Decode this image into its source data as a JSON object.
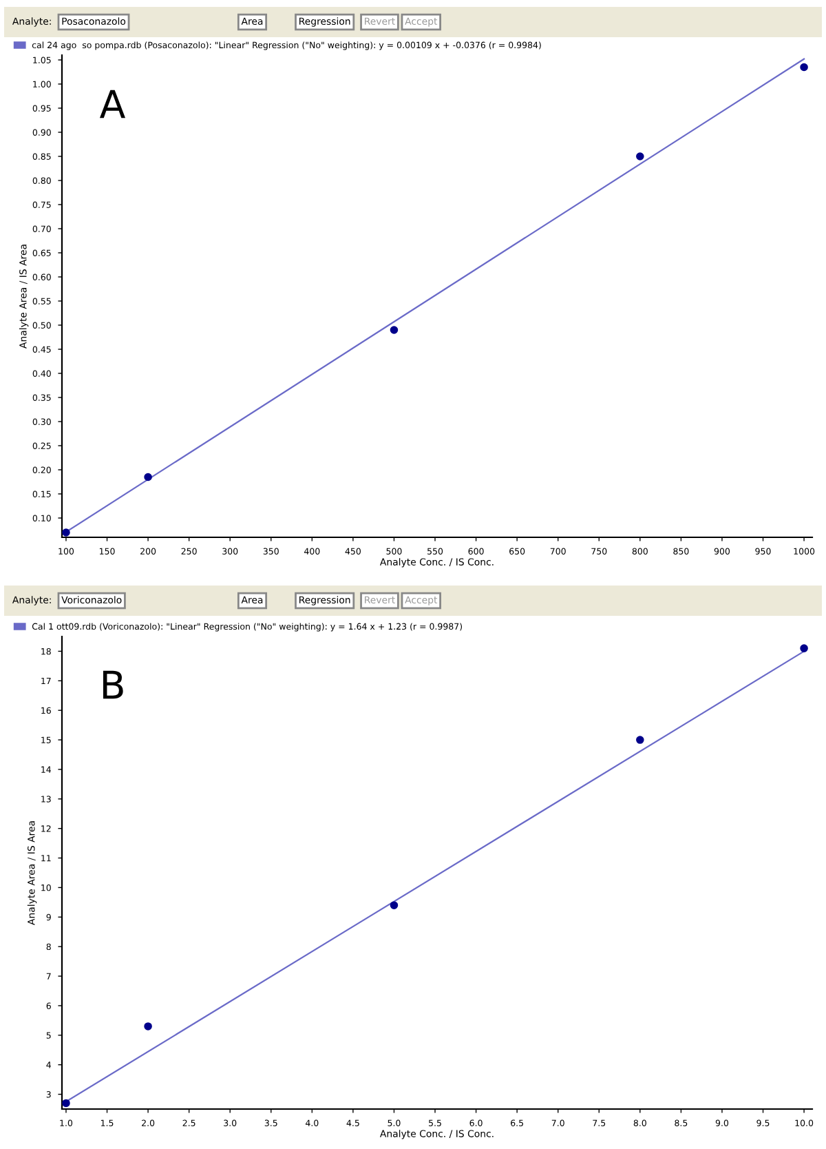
{
  "chart_data": [
    {
      "type": "scatter",
      "title": "A",
      "xlabel": "Analyte Conc. / IS Conc.",
      "ylabel": "Analyte Area / IS Area",
      "annotations": [
        "Analyte:",
        "Posaconazolo",
        "Area",
        "Regression",
        "Revert",
        "Accept"
      ],
      "legend": "top left",
      "grid": false,
      "xlim": [
        95,
        1010
      ],
      "ylim": [
        0.06,
        1.06
      ],
      "xticks": [
        100,
        150,
        200,
        250,
        300,
        350,
        400,
        450,
        500,
        550,
        600,
        650,
        700,
        750,
        800,
        850,
        900,
        950,
        1000
      ],
      "yticks": [
        {
          "value": 0.1,
          "label": "0.10"
        },
        {
          "value": 0.15,
          "label": "0.15"
        },
        {
          "value": 0.2,
          "label": "0.20"
        },
        {
          "value": 0.25,
          "label": "0.25"
        },
        {
          "value": 0.3,
          "label": "0.30"
        },
        {
          "value": 0.35,
          "label": "0.35"
        },
        {
          "value": 0.4,
          "label": "0.40"
        },
        {
          "value": 0.45,
          "label": "0.45"
        },
        {
          "value": 0.5,
          "label": "0.50"
        },
        {
          "value": 0.55,
          "label": "0.55"
        },
        {
          "value": 0.6,
          "label": "0.60"
        },
        {
          "value": 0.65,
          "label": "0.65"
        },
        {
          "value": 0.7,
          "label": "0.70"
        },
        {
          "value": 0.75,
          "label": "0.75"
        },
        {
          "value": 0.8,
          "label": "0.80"
        },
        {
          "value": 0.85,
          "label": "0.85"
        },
        {
          "value": 0.9,
          "label": "0.90"
        },
        {
          "value": 0.95,
          "label": "0.95"
        },
        {
          "value": 1.0,
          "label": "1.00"
        },
        {
          "value": 1.05,
          "label": "1.05"
        }
      ],
      "series": [
        {
          "type": "line",
          "name": "cal 24 ago  so pompa.rdb (Posaconazolo): \"Linear\" Regression (\"No\" weighting): y = 0.00109 x + -0.0376 (r = 0.9984)",
          "color": "#6a6ac8",
          "x": [
            100,
            1000
          ],
          "values": [
            0.071,
            1.052
          ]
        },
        {
          "marker": "circle",
          "color": "#00008b",
          "x": [
            100,
            200,
            500,
            800,
            1000
          ],
          "values": [
            0.07,
            0.185,
            0.49,
            0.85,
            1.035
          ]
        }
      ]
    },
    {
      "type": "scatter",
      "title": "B",
      "xlabel": "Analyte Conc. / IS Conc.",
      "ylabel": "Analyte Area / IS Area",
      "annotations": [
        "Analyte:",
        "Voriconazolo",
        "Area",
        "Regression",
        "Revert",
        "Accept"
      ],
      "legend": "top left",
      "grid": false,
      "xlim": [
        0.95,
        10.1
      ],
      "ylim": [
        2.5,
        18.5
      ],
      "xticks": [
        {
          "value": 1.0,
          "label": "1.0"
        },
        {
          "value": 1.5,
          "label": "1.5"
        },
        {
          "value": 2.0,
          "label": "2.0"
        },
        {
          "value": 2.5,
          "label": "2.5"
        },
        {
          "value": 3.0,
          "label": "3.0"
        },
        {
          "value": 3.5,
          "label": "3.5"
        },
        {
          "value": 4.0,
          "label": "4.0"
        },
        {
          "value": 4.5,
          "label": "4.5"
        },
        {
          "value": 5.0,
          "label": "5.0"
        },
        {
          "value": 5.5,
          "label": "5.5"
        },
        {
          "value": 6.0,
          "label": "6.0"
        },
        {
          "value": 6.5,
          "label": "6.5"
        },
        {
          "value": 7.0,
          "label": "7.0"
        },
        {
          "value": 7.5,
          "label": "7.5"
        },
        {
          "value": 8.0,
          "label": "8.0"
        },
        {
          "value": 8.5,
          "label": "8.5"
        },
        {
          "value": 9.0,
          "label": "9.0"
        },
        {
          "value": 9.5,
          "label": "9.5"
        },
        {
          "value": 10.0,
          "label": "10.0"
        }
      ],
      "yticks": [
        3,
        4,
        5,
        6,
        7,
        8,
        9,
        10,
        11,
        12,
        13,
        14,
        15,
        16,
        17,
        18
      ],
      "series": [
        {
          "type": "line",
          "name": "Cal 1 ott09.rdb (Voriconazolo): \"Linear\" Regression (\"No\" weighting): y = 1.64 x + 1.23 (r = 0.9987)",
          "color": "#6a6ac8",
          "x": [
            1,
            10
          ],
          "values": [
            2.75,
            18.0
          ]
        },
        {
          "marker": "circle",
          "color": "#00008b",
          "x": [
            1,
            2,
            5,
            8,
            10
          ],
          "values": [
            2.7,
            5.3,
            9.4,
            15.0,
            18.1
          ]
        }
      ]
    }
  ]
}
